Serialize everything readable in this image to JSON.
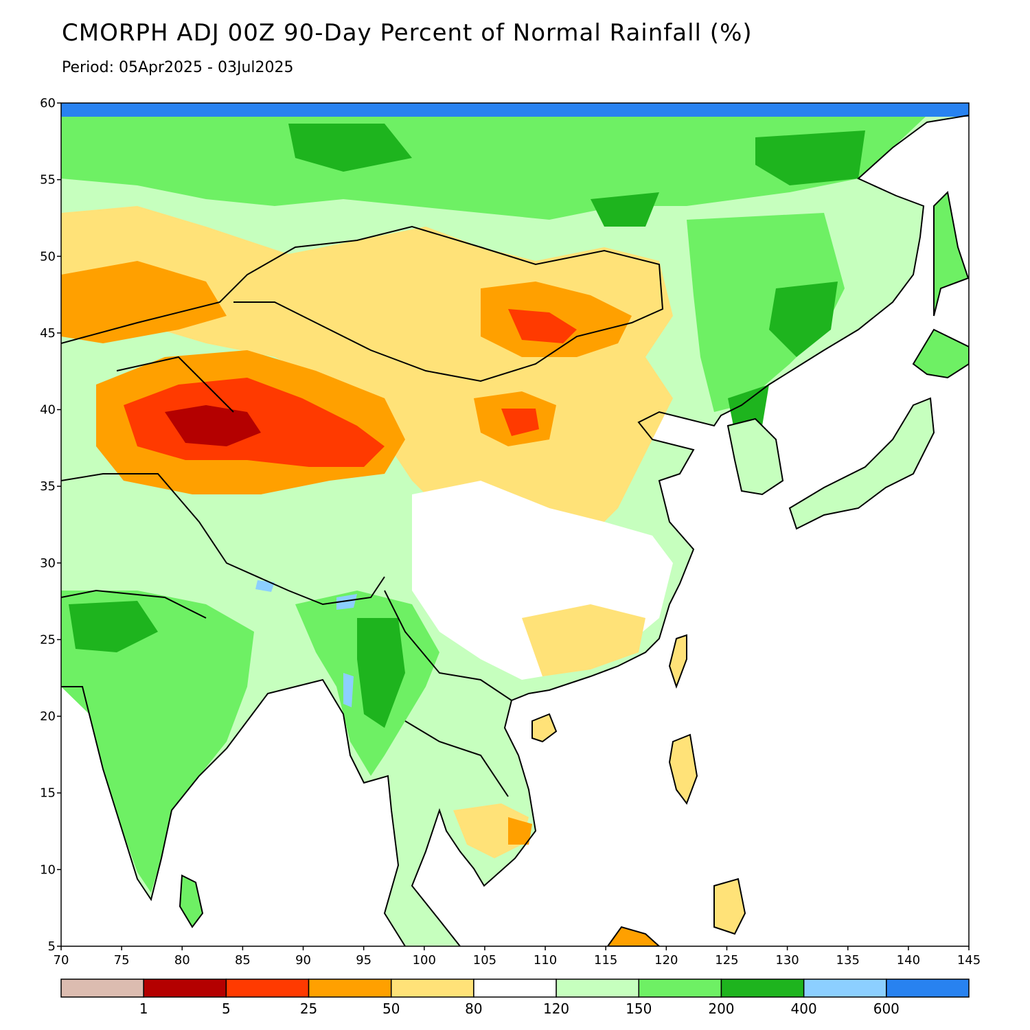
{
  "title": "CMORPH ADJ 00Z 90-Day Percent of Normal Rainfall (%)",
  "subtitle": "Period: 05Apr2025 - 03Jul2025",
  "map": {
    "lon_range": [
      70,
      145
    ],
    "lat_range": [
      5,
      60
    ],
    "lon_ticks": [
      "70",
      "75",
      "80",
      "85",
      "90",
      "95",
      "100",
      "105",
      "110",
      "115",
      "120",
      "125",
      "130",
      "135",
      "140",
      "145"
    ],
    "lat_ticks": [
      "5",
      "10",
      "15",
      "20",
      "25",
      "30",
      "35",
      "40",
      "45",
      "50",
      "55",
      "60"
    ]
  },
  "colorbar": {
    "colors": [
      "#dcbcb0",
      "#b40000",
      "#ff3a00",
      "#ffa000",
      "#ffe278",
      "#ffffff",
      "#c6ffbe",
      "#6ef064",
      "#1eb41e",
      "#8ccfff",
      "#2882f0"
    ],
    "labels": [
      "1",
      "5",
      "25",
      "50",
      "80",
      "120",
      "150",
      "200",
      "400",
      "600"
    ]
  },
  "palette": {
    "ocean": "#ffffff",
    "border": "#000000"
  }
}
